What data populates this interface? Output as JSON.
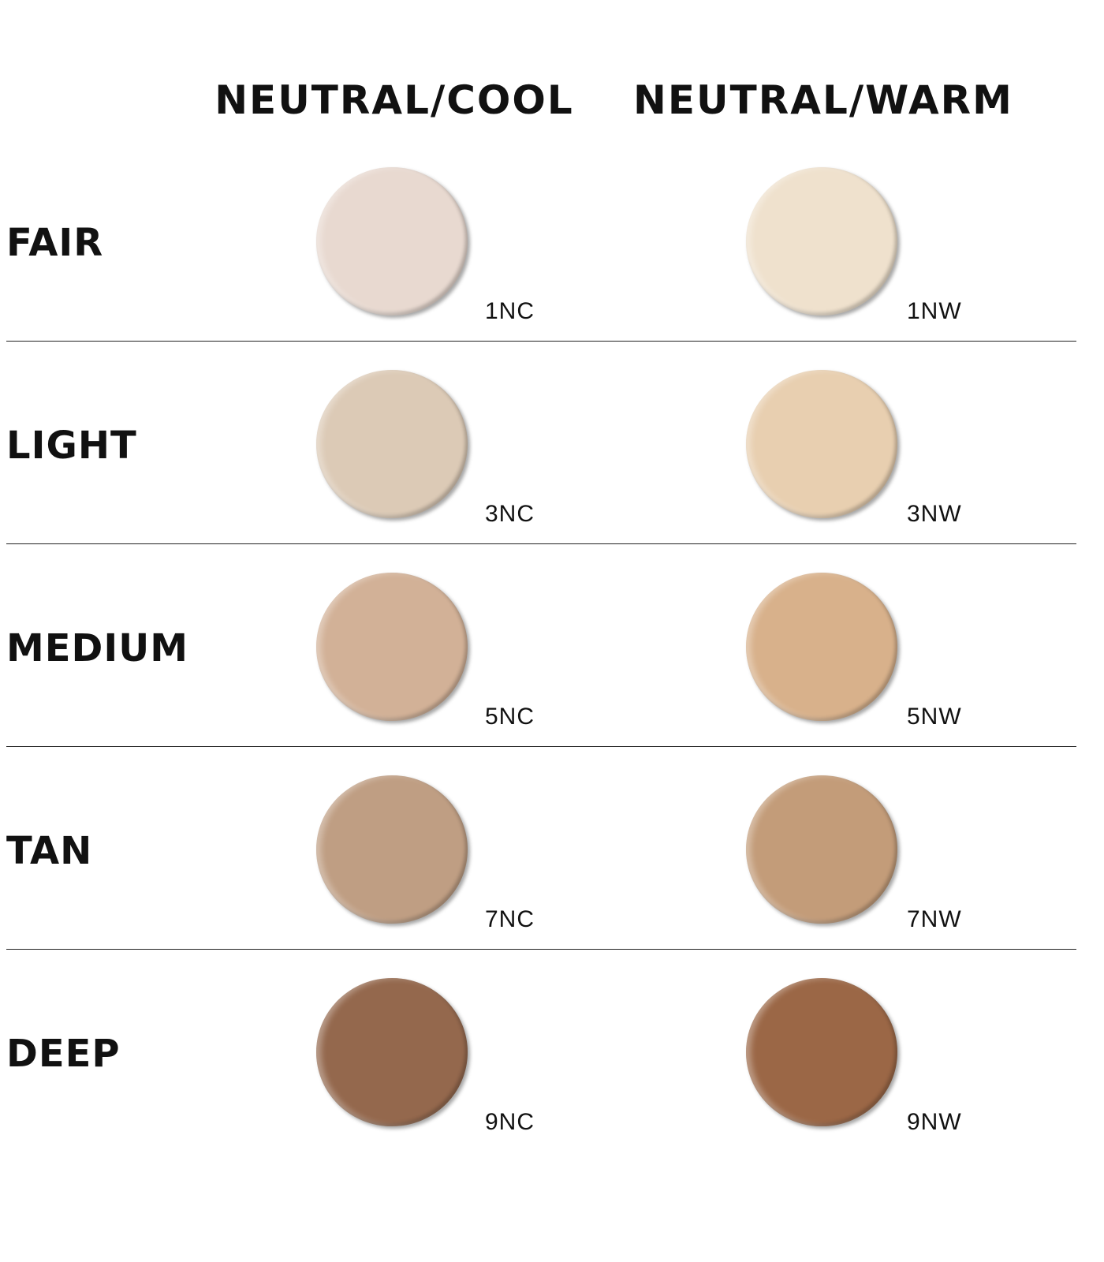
{
  "columns": [
    "NEUTRAL/COOL",
    "NEUTRAL/WARM"
  ],
  "rows": [
    {
      "label": "FAIR",
      "shades": [
        {
          "code": "1NC",
          "color": "#e8d9d0"
        },
        {
          "code": "1NW",
          "color": "#efe1cd"
        }
      ]
    },
    {
      "label": "LIGHT",
      "shades": [
        {
          "code": "3NC",
          "color": "#dccab6"
        },
        {
          "code": "3NW",
          "color": "#e8cfb0"
        }
      ]
    },
    {
      "label": "MEDIUM",
      "shades": [
        {
          "code": "5NC",
          "color": "#d2b197"
        },
        {
          "code": "5NW",
          "color": "#d8b18b"
        }
      ]
    },
    {
      "label": "TAN",
      "shades": [
        {
          "code": "7NC",
          "color": "#bf9e83"
        },
        {
          "code": "7NW",
          "color": "#c39c79"
        }
      ]
    },
    {
      "label": "DEEP",
      "shades": [
        {
          "code": "9NC",
          "color": "#94684d"
        },
        {
          "code": "9NW",
          "color": "#9b6746"
        }
      ]
    }
  ]
}
